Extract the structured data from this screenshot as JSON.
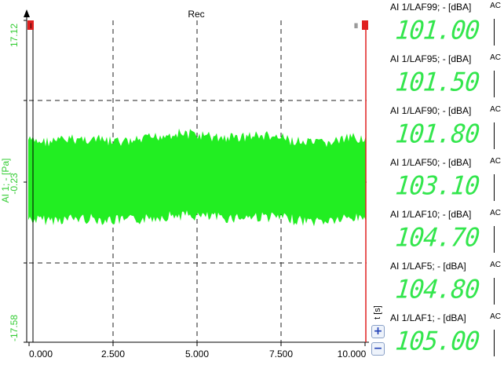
{
  "scope": {
    "title": "Rec",
    "y_axis_label": "AI 1; - [Pa]",
    "y_ticks": [
      "17.12",
      "-0.23",
      "-17.58"
    ],
    "x_axis_label": "t [s]",
    "x_ticks": [
      "0.000",
      "2.500",
      "5.000",
      "7.500",
      "10.000"
    ],
    "signal_color": "#22ee22",
    "marker_color": "#e02020",
    "left_marker_label": "I",
    "right_marker_label": "II",
    "zoom_in_label": "+",
    "zoom_out_label": "−"
  },
  "meters": [
    {
      "label": "AI 1/LAF99; - [dBA]",
      "tag": "AC",
      "value": "101.00"
    },
    {
      "label": "AI 1/LAF95; - [dBA]",
      "tag": "AC",
      "value": "101.50"
    },
    {
      "label": "AI 1/LAF90; - [dBA]",
      "tag": "AC",
      "value": "101.80"
    },
    {
      "label": "AI 1/LAF50; - [dBA]",
      "tag": "AC",
      "value": "103.10"
    },
    {
      "label": "AI 1/LAF10; - [dBA]",
      "tag": "AC",
      "value": "104.70"
    },
    {
      "label": "AI 1/LAF5; - [dBA]",
      "tag": "AC",
      "value": "104.80"
    },
    {
      "label": "AI 1/LAF1; - [dBA]",
      "tag": "AC",
      "value": "105.00"
    }
  ]
}
